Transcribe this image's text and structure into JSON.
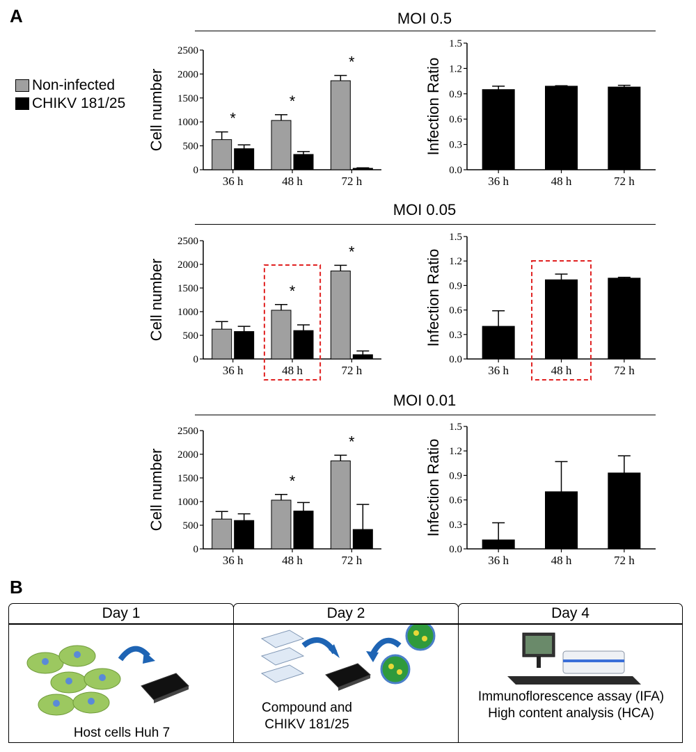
{
  "panel_labels": {
    "a": "A",
    "b": "B"
  },
  "legend": {
    "items": [
      {
        "label": "Non-infected",
        "color": "#a0a0a0"
      },
      {
        "label": "CHIKV 181/25",
        "color": "#000000"
      }
    ]
  },
  "chart_data": [
    {
      "type": "bar",
      "group": "MOI 0.5",
      "ylabel": "Cell number",
      "categories": [
        "36 h",
        "48 h",
        "72 h"
      ],
      "ylim": [
        0,
        2500
      ],
      "yticks": [
        0,
        500,
        1000,
        1500,
        2000,
        2500
      ],
      "series": [
        {
          "name": "Non-infected",
          "values": [
            630,
            1030,
            1860
          ],
          "errors": [
            160,
            120,
            110
          ],
          "color": "#a0a0a0"
        },
        {
          "name": "CHIKV 181/25",
          "values": [
            440,
            320,
            30
          ],
          "errors": [
            80,
            60,
            10
          ],
          "color": "#000000"
        }
      ],
      "annotations": [
        "*",
        "*",
        "*"
      ],
      "highlight": null
    },
    {
      "type": "bar",
      "group": "MOI 0.5",
      "ylabel": "Infection Ratio",
      "categories": [
        "36 h",
        "48 h",
        "72 h"
      ],
      "ylim": [
        0,
        1.5
      ],
      "yticks": [
        "0.0",
        "0.3",
        "0.6",
        "0.9",
        "1.2",
        "1.5"
      ],
      "series": [
        {
          "values": [
            0.95,
            0.99,
            0.98
          ],
          "errors": [
            0.04,
            0.005,
            0.02
          ],
          "color": "#000000"
        }
      ],
      "highlight": null
    },
    {
      "type": "bar",
      "group": "MOI 0.05",
      "ylabel": "Cell number",
      "categories": [
        "36 h",
        "48 h",
        "72 h"
      ],
      "ylim": [
        0,
        2500
      ],
      "yticks": [
        0,
        500,
        1000,
        1500,
        2000,
        2500
      ],
      "series": [
        {
          "name": "Non-infected",
          "values": [
            630,
            1030,
            1860
          ],
          "errors": [
            160,
            120,
            120
          ],
          "color": "#a0a0a0"
        },
        {
          "name": "CHIKV 181/25",
          "values": [
            580,
            600,
            90
          ],
          "errors": [
            110,
            120,
            80
          ],
          "color": "#000000"
        }
      ],
      "annotations": [
        "",
        "*",
        "*"
      ],
      "highlight": 1
    },
    {
      "type": "bar",
      "group": "MOI 0.05",
      "ylabel": "Infection Ratio",
      "categories": [
        "36 h",
        "48 h",
        "72 h"
      ],
      "ylim": [
        0,
        1.5
      ],
      "yticks": [
        "0.0",
        "0.3",
        "0.6",
        "0.9",
        "1.2",
        "1.5"
      ],
      "series": [
        {
          "values": [
            0.4,
            0.97,
            0.99
          ],
          "errors": [
            0.19,
            0.07,
            0.01
          ],
          "color": "#000000"
        }
      ],
      "highlight": 1
    },
    {
      "type": "bar",
      "group": "MOI 0.01",
      "ylabel": "Cell number",
      "categories": [
        "36 h",
        "48 h",
        "72 h"
      ],
      "ylim": [
        0,
        2500
      ],
      "yticks": [
        0,
        500,
        1000,
        1500,
        2000,
        2500
      ],
      "series": [
        {
          "name": "Non-infected",
          "values": [
            630,
            1030,
            1860
          ],
          "errors": [
            160,
            120,
            120
          ],
          "color": "#a0a0a0"
        },
        {
          "name": "CHIKV 181/25",
          "values": [
            600,
            800,
            410
          ],
          "errors": [
            140,
            180,
            530
          ],
          "color": "#000000"
        }
      ],
      "annotations": [
        "",
        "*",
        "*"
      ],
      "highlight": null
    },
    {
      "type": "bar",
      "group": "MOI 0.01",
      "ylabel": "Infection Ratio",
      "categories": [
        "36 h",
        "48 h",
        "72 h"
      ],
      "ylim": [
        0,
        1.5
      ],
      "yticks": [
        "0.0",
        "0.3",
        "0.6",
        "0.9",
        "1.2",
        "1.5"
      ],
      "series": [
        {
          "values": [
            0.11,
            0.7,
            0.93
          ],
          "errors": [
            0.21,
            0.37,
            0.21
          ],
          "color": "#000000"
        }
      ],
      "highlight": null
    }
  ],
  "moi_titles": [
    "MOI 0.5",
    "MOI 0.05",
    "MOI 0.01"
  ],
  "timeline": {
    "days": [
      {
        "label": "Day 1",
        "caption": "Host cells Huh 7"
      },
      {
        "label": "Day 2",
        "caption_line1": "Compound and",
        "caption_line2": "CHIKV  181/25"
      },
      {
        "label": "Day 4",
        "caption_line1": "Immunoflorescence assay (IFA)",
        "caption_line2": "High content analysis (HCA)"
      }
    ]
  },
  "colors": {
    "highlight": "#e02020",
    "arrow": "#1e64b4",
    "cell": "#9cc860",
    "nucleus": "#5a8ad8",
    "virus": "#2f9a3c"
  }
}
